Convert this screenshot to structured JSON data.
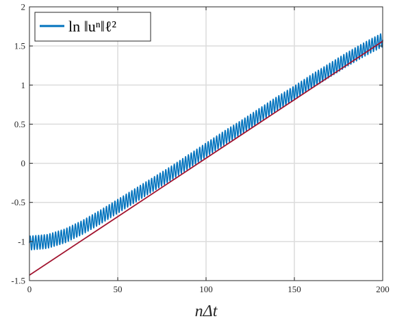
{
  "chart_data": {
    "type": "line",
    "xlabel": "nΔt",
    "ylabel": "",
    "xlim": [
      0,
      200
    ],
    "ylim": [
      -1.5,
      2
    ],
    "xticks": [
      0,
      50,
      100,
      150,
      200
    ],
    "yticks": [
      -1.5,
      -1,
      -0.5,
      0,
      0.5,
      1,
      1.5,
      2
    ],
    "xtick_labels": [
      "0",
      "50",
      "100",
      "150",
      "200"
    ],
    "ytick_labels": [
      "-1.5",
      "-1",
      "-0.5",
      "0",
      "0.5",
      "1",
      "1.5",
      "2"
    ],
    "grid": true,
    "legend": {
      "position": "top-left",
      "text": "ln ‖uⁿ‖ℓ²"
    },
    "series": [
      {
        "name": "ln ‖uⁿ‖ℓ²",
        "color": "#0072BD",
        "style": "oscillating",
        "center": {
          "x": [
            0,
            10,
            20,
            30,
            40,
            50,
            60,
            70,
            80,
            90,
            100,
            110,
            120,
            130,
            140,
            150,
            160,
            170,
            180,
            190,
            200
          ],
          "y": [
            -1.02,
            -1.0,
            -0.93,
            -0.82,
            -0.69,
            -0.55,
            -0.41,
            -0.27,
            -0.13,
            0.02,
            0.17,
            0.32,
            0.46,
            0.61,
            0.76,
            0.9,
            1.05,
            1.19,
            1.33,
            1.46,
            1.58
          ]
        },
        "oscillation_amplitude": 0.09,
        "oscillation_period": 1.6
      },
      {
        "color": "#A2142F",
        "style": "line",
        "x": [
          0,
          200
        ],
        "y": [
          -1.43,
          1.56
        ]
      }
    ]
  }
}
